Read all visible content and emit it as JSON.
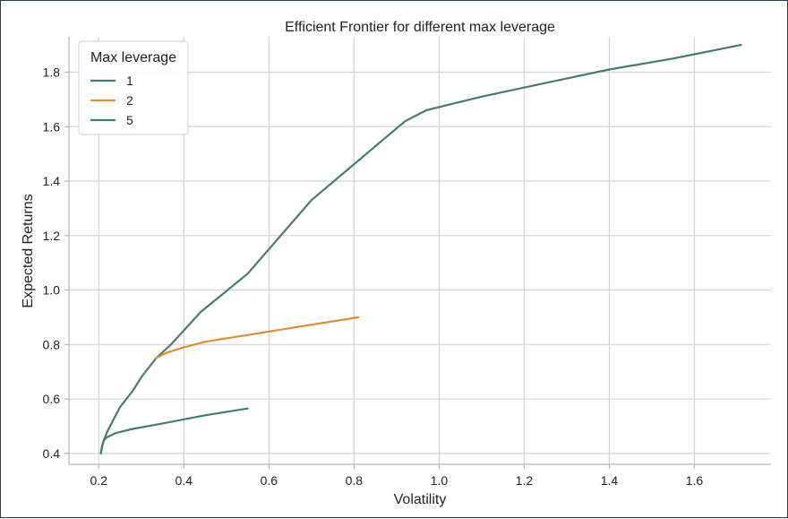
{
  "chart_data": {
    "type": "line",
    "title": "Efficient Frontier for different max leverage",
    "xlabel": "Volatility",
    "ylabel": "Expected Returns",
    "xlim": [
      0.13,
      1.78
    ],
    "ylim": [
      0.36,
      1.93
    ],
    "xticks": [
      "0.2",
      "0.4",
      "0.6",
      "0.8",
      "1.0",
      "1.2",
      "1.4",
      "1.6"
    ],
    "yticks": [
      "0.4",
      "0.6",
      "0.8",
      "1.0",
      "1.2",
      "1.4",
      "1.6",
      "1.8"
    ],
    "xtick_values": [
      0.2,
      0.4,
      0.6,
      0.8,
      1.0,
      1.2,
      1.4,
      1.6
    ],
    "ytick_values": [
      0.4,
      0.6,
      0.8,
      1.0,
      1.2,
      1.4,
      1.6,
      1.8
    ],
    "grid": true,
    "legend": {
      "title": "Max leverage",
      "placement": "top-left"
    },
    "series": [
      {
        "name": "1",
        "color": "#4a7a68",
        "points": [
          [
            0.205,
            0.4
          ],
          [
            0.208,
            0.43
          ],
          [
            0.213,
            0.45
          ],
          [
            0.22,
            0.46
          ],
          [
            0.24,
            0.475
          ],
          [
            0.28,
            0.49
          ],
          [
            0.35,
            0.51
          ],
          [
            0.45,
            0.54
          ],
          [
            0.55,
            0.565
          ]
        ]
      },
      {
        "name": "2",
        "color": "#d98f3c",
        "points": [
          [
            0.335,
            0.75
          ],
          [
            0.36,
            0.77
          ],
          [
            0.4,
            0.79
          ],
          [
            0.45,
            0.81
          ],
          [
            0.55,
            0.835
          ],
          [
            0.65,
            0.86
          ],
          [
            0.75,
            0.885
          ],
          [
            0.81,
            0.9
          ]
        ]
      },
      {
        "name": "5",
        "color": "#4a7a68",
        "points": [
          [
            0.205,
            0.4
          ],
          [
            0.21,
            0.44
          ],
          [
            0.22,
            0.48
          ],
          [
            0.23,
            0.51
          ],
          [
            0.25,
            0.57
          ],
          [
            0.28,
            0.63
          ],
          [
            0.3,
            0.68
          ],
          [
            0.335,
            0.75
          ],
          [
            0.37,
            0.8
          ],
          [
            0.44,
            0.92
          ],
          [
            0.55,
            1.06
          ],
          [
            0.7,
            1.33
          ],
          [
            0.92,
            1.62
          ],
          [
            0.97,
            1.66
          ],
          [
            1.1,
            1.71
          ],
          [
            1.25,
            1.76
          ],
          [
            1.4,
            1.81
          ],
          [
            1.55,
            1.85
          ],
          [
            1.71,
            1.9
          ]
        ]
      }
    ]
  }
}
